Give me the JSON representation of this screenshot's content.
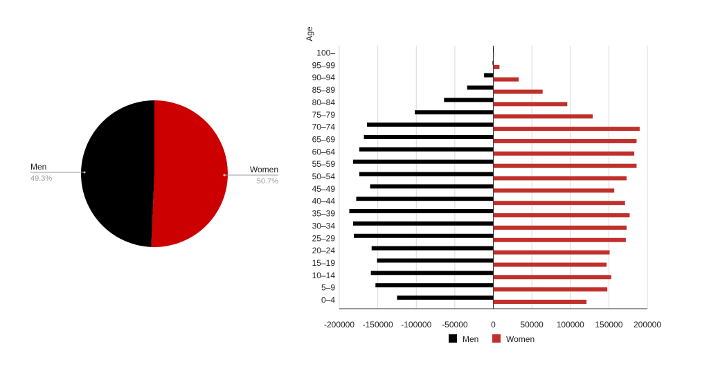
{
  "chart_data": [
    {
      "type": "pie",
      "slices": [
        {
          "label": "Men",
          "value": 49.3,
          "pct_label": "49.3%",
          "color": "#000000"
        },
        {
          "label": "Women",
          "value": 50.7,
          "pct_label": "50.7%",
          "color": "#cc0000"
        }
      ]
    },
    {
      "type": "bar",
      "orientation": "horizontal",
      "ylabel": "Age",
      "xlabel": "",
      "xlim": [
        -200000,
        200000
      ],
      "xticks": [
        "-200000",
        "-150000",
        "-100000",
        "-50000",
        "0",
        "50000",
        "100000",
        "150000",
        "200000"
      ],
      "categories": [
        "100–",
        "95–99",
        "90–94",
        "85–89",
        "80–84",
        "75–79",
        "70–74",
        "65–69",
        "60–64",
        "55–59",
        "50–54",
        "45–49",
        "40–44",
        "35–39",
        "30–34",
        "25–29",
        "20–24",
        "15–19",
        "10–14",
        "5–9",
        "0–4"
      ],
      "series": [
        {
          "name": "Men",
          "color": "#000000",
          "values": [
            -500,
            -1000,
            -12000,
            -34000,
            -64000,
            -102000,
            -164000,
            -168000,
            -174000,
            -182000,
            -174000,
            -160000,
            -178000,
            -187000,
            -182000,
            -181000,
            -158000,
            -151000,
            -159000,
            -153000,
            -125000
          ]
        },
        {
          "name": "Women",
          "color": "#c0302a",
          "values": [
            800,
            8000,
            33000,
            64000,
            96000,
            129000,
            190000,
            186000,
            183000,
            186000,
            173000,
            157000,
            171000,
            177000,
            173000,
            172000,
            151000,
            147000,
            153000,
            148000,
            121000
          ]
        }
      ],
      "legend": "bottom",
      "grid": true
    }
  ]
}
